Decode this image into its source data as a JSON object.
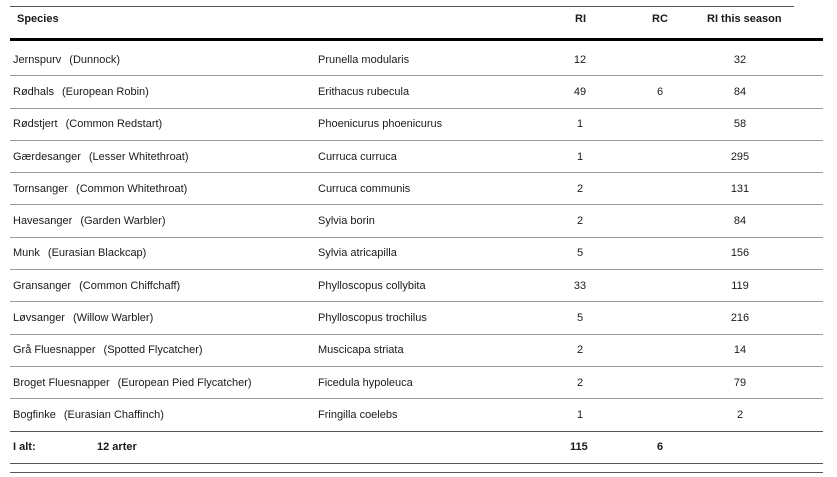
{
  "headers": {
    "species": "Species",
    "ri": "RI",
    "rc": "RC",
    "ri_season": "RI this season"
  },
  "rows": [
    {
      "local": "Jernspurv",
      "english": "(Dunnock)",
      "scientific": "Prunella modularis",
      "ri": "12",
      "rc": "",
      "season": "32"
    },
    {
      "local": "Rødhals",
      "english": "(European Robin)",
      "scientific": "Erithacus rubecula",
      "ri": "49",
      "rc": "6",
      "season": "84"
    },
    {
      "local": "Rødstjert",
      "english": "(Common Redstart)",
      "scientific": "Phoenicurus phoenicurus",
      "ri": "1",
      "rc": "",
      "season": "58"
    },
    {
      "local": "Gærdesanger",
      "english": "(Lesser Whitethroat)",
      "scientific": "Curruca curruca",
      "ri": "1",
      "rc": "",
      "season": "295"
    },
    {
      "local": "Tornsanger",
      "english": "(Common Whitethroat)",
      "scientific": "Curruca communis",
      "ri": "2",
      "rc": "",
      "season": "131"
    },
    {
      "local": "Havesanger",
      "english": "(Garden Warbler)",
      "scientific": "Sylvia borin",
      "ri": "2",
      "rc": "",
      "season": "84"
    },
    {
      "local": "Munk",
      "english": "(Eurasian Blackcap)",
      "scientific": "Sylvia atricapilla",
      "ri": "5",
      "rc": "",
      "season": "156"
    },
    {
      "local": "Gransanger",
      "english": "(Common Chiffchaff)",
      "scientific": "Phylloscopus collybita",
      "ri": "33",
      "rc": "",
      "season": "119"
    },
    {
      "local": "Løvsanger",
      "english": "(Willow Warbler)",
      "scientific": "Phylloscopus trochilus",
      "ri": "5",
      "rc": "",
      "season": "216"
    },
    {
      "local": "Grå Fluesnapper",
      "english": "(Spotted Flycatcher)",
      "scientific": "Muscicapa striata",
      "ri": "2",
      "rc": "",
      "season": "14"
    },
    {
      "local": "Broget Fluesnapper",
      "english": "(European Pied Flycatcher)",
      "scientific": "Ficedula hypoleuca",
      "ri": "2",
      "rc": "",
      "season": "79"
    },
    {
      "local": "Bogfinke",
      "english": "(Eurasian Chaffinch)",
      "scientific": "Fringilla coelebs",
      "ri": "1",
      "rc": "",
      "season": "2"
    }
  ],
  "total": {
    "label": "I alt:",
    "species_count": "12 arter",
    "ri": "115",
    "rc": "6"
  }
}
